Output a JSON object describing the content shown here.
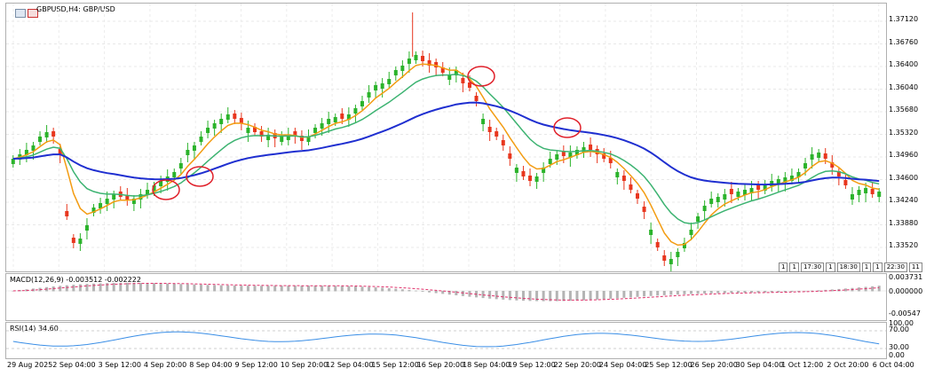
{
  "title": {
    "symbol": "GBPUSD,H4:",
    "name": "GBP/USD"
  },
  "macd": {
    "label": "MACD(12,26,9) -0.003512 -0.002222",
    "axis": [
      "0.003731",
      "0.000000",
      "-0.00547"
    ]
  },
  "rsi": {
    "label": "RSI(14) 34.60",
    "axis": [
      "100.00",
      "70.00",
      "30.00",
      "0.00"
    ]
  },
  "price_axis": [
    "1.37120",
    "1.36760",
    "1.36400",
    "1.36040",
    "1.35680",
    "1.35320",
    "1.34960",
    "1.34600",
    "1.34240",
    "1.33880",
    "1.33520"
  ],
  "time_axis": [
    "29 Aug 2025",
    "2 Sep 04:00",
    "3 Sep 12:00",
    "4 Sep 20:00",
    "8 Sep 04:00",
    "9 Sep 12:00",
    "10 Sep 20:00",
    "12 Sep 04:00",
    "15 Sep 12:00",
    "16 Sep 20:00",
    "18 Sep 04:00",
    "19 Sep 12:00",
    "22 Sep 20:00",
    "24 Sep 04:00",
    "25 Sep 12:00",
    "26 Sep 20:00",
    "30 Sep 04:00",
    "1 Oct 12:00",
    "2 Oct 20:00",
    "6 Oct 04:00"
  ],
  "time_boxes": [
    "1",
    "1",
    "17:30",
    "1",
    "18:30",
    "1",
    "1",
    "22:30",
    "11"
  ],
  "colors": {
    "bull": "#2bb32b",
    "bear": "#e8361e",
    "ma_fast": "#f39c12",
    "ma_mid": "#3cb371",
    "ma_slow": "#1f2fd0",
    "macd_hist": "#b4b4b4",
    "macd_signal": "#e0306a",
    "rsi_line": "#3a8ee6",
    "circle": "#e0202a"
  }
}
